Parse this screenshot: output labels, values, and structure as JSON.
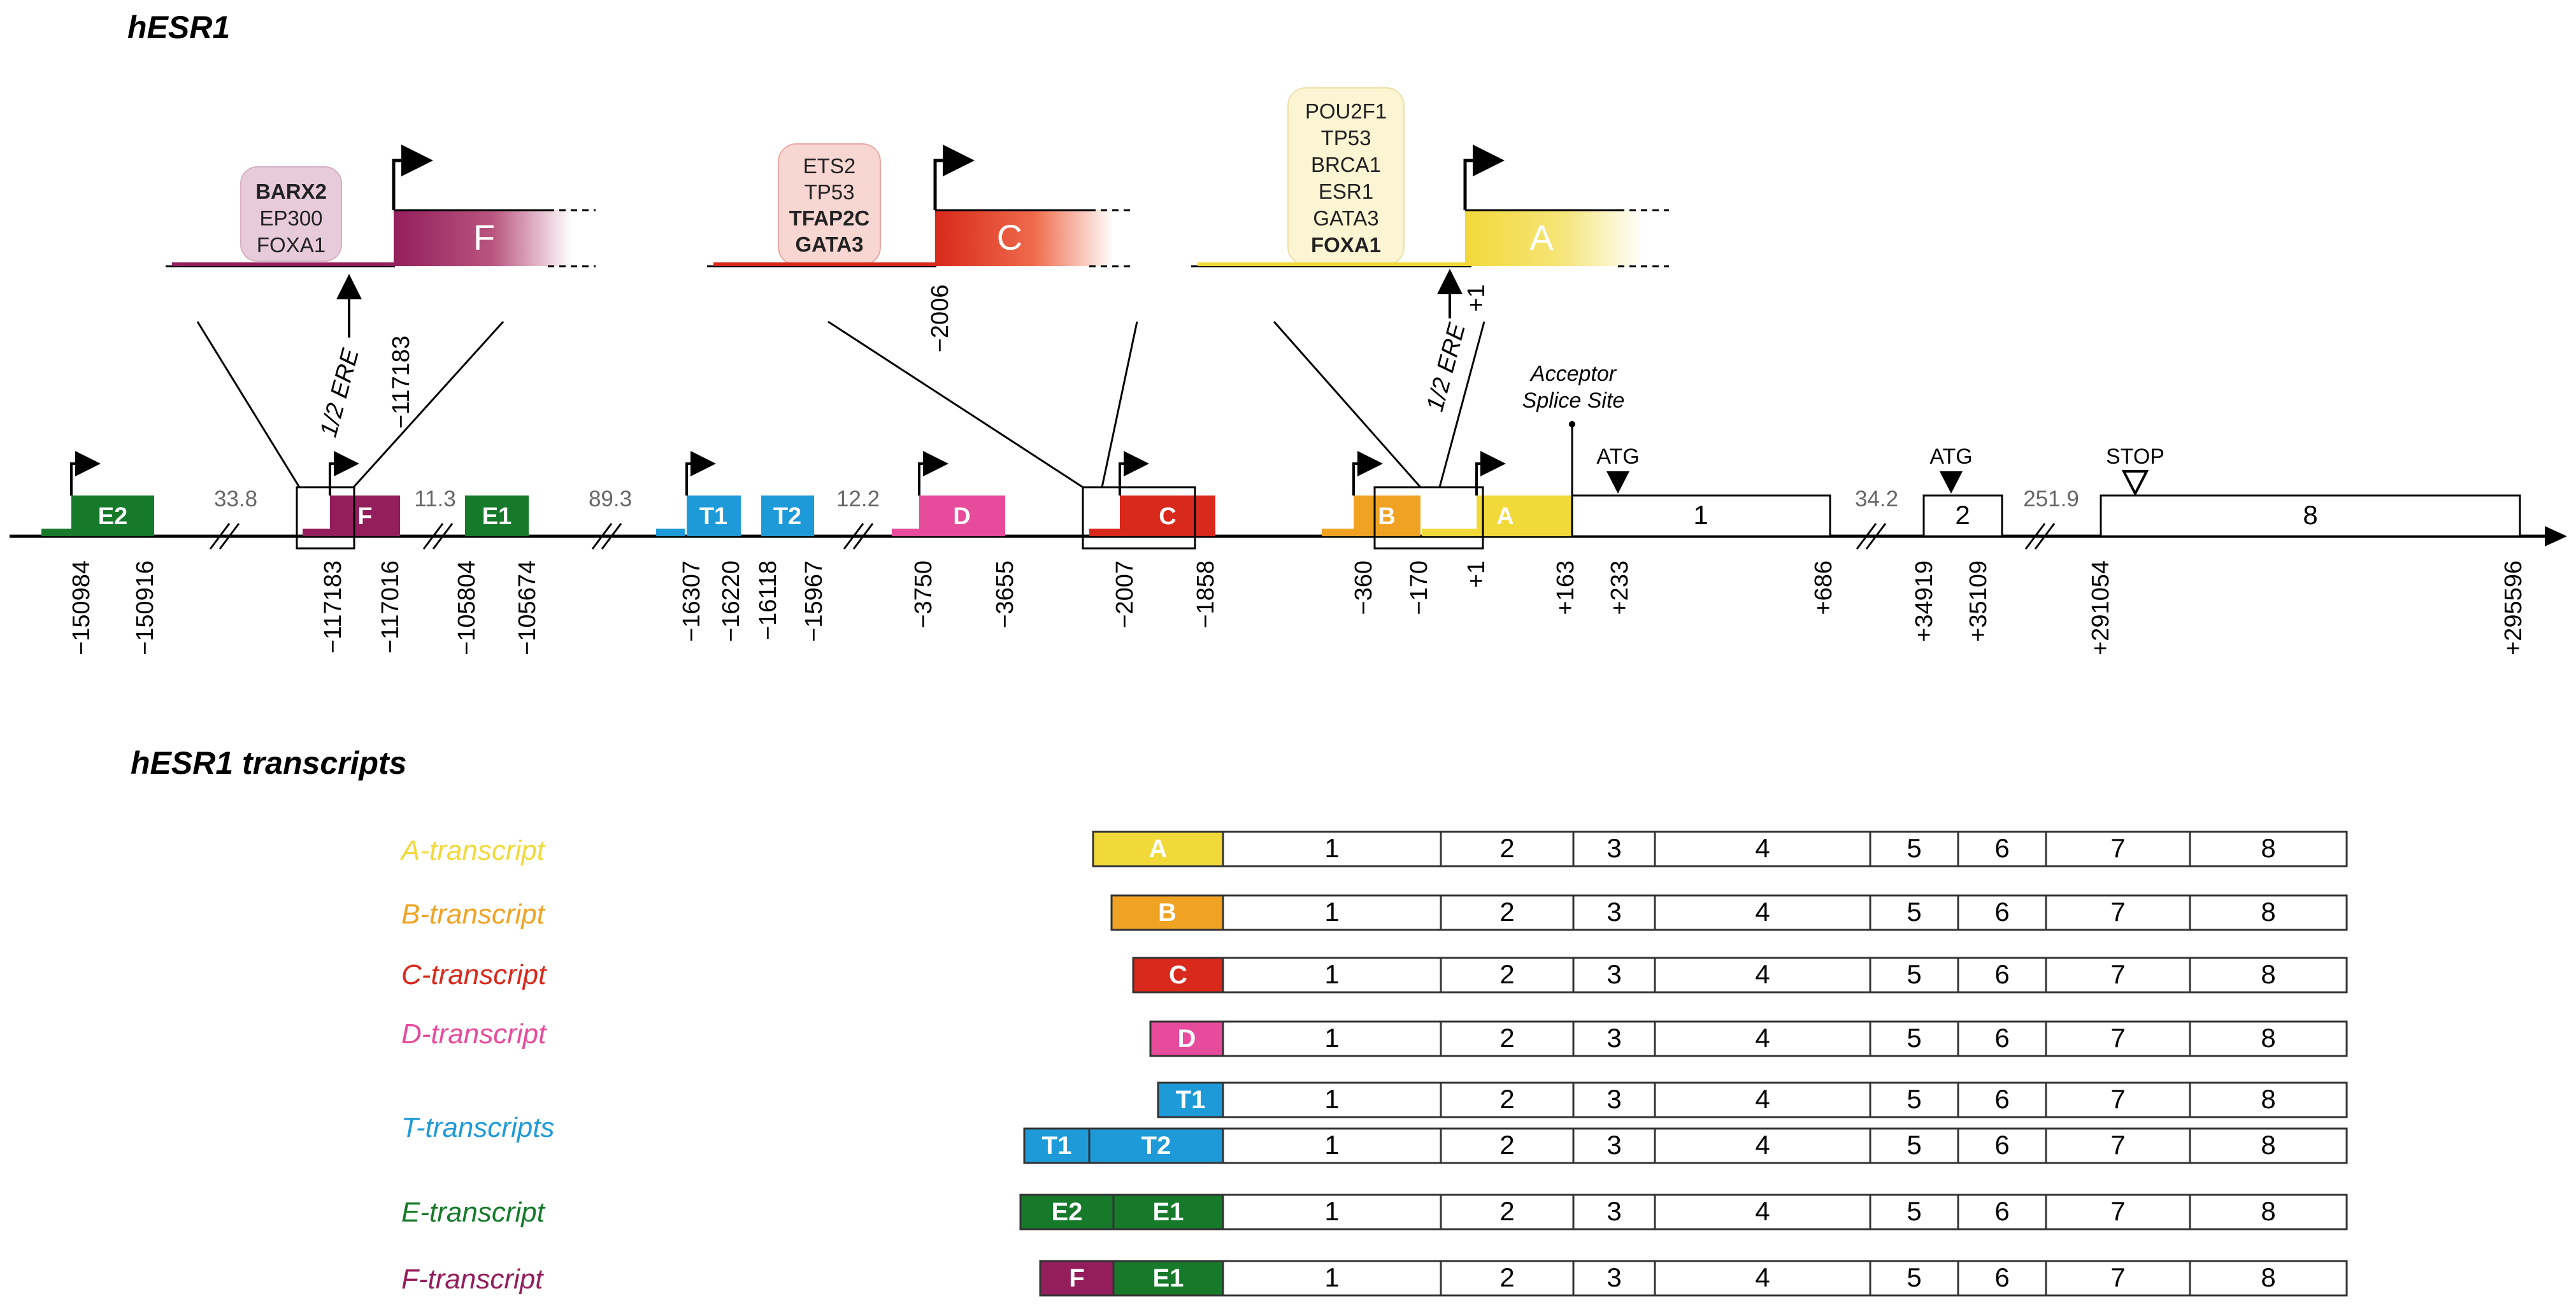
{
  "titles": {
    "gene": "hESR1",
    "transcripts": "hESR1 transcripts"
  },
  "colors": {
    "A": "#f2d93a",
    "B": "#f0a323",
    "C": "#d8291c",
    "D": "#e74b9c",
    "T": "#1e9ad9",
    "E": "#167a2a",
    "F": "#931e5b",
    "gene_axis": "#000000",
    "distance": "#666666"
  },
  "promoters": {
    "F": {
      "label": "F",
      "position": "−117183",
      "ere_label": "1/2 ERE",
      "tfs": [
        "BARX2",
        "EP300",
        "FOXA1"
      ],
      "bold_tfs": [
        "BARX2"
      ]
    },
    "C": {
      "label": "C",
      "position": "−2006",
      "tfs": [
        "ETS2",
        "TP53",
        "TFAP2C",
        "GATA3"
      ],
      "bold_tfs": [
        "TFAP2C",
        "GATA3"
      ]
    },
    "A": {
      "label": "A",
      "position": "+1",
      "ere_label": "1/2 ERE",
      "tfs": [
        "POU2F1",
        "TP53",
        "BRCA1",
        "ESR1",
        "GATA3",
        "FOXA1"
      ],
      "bold_tfs": [
        "FOXA1"
      ]
    }
  },
  "gene_map": {
    "exons": [
      {
        "label": "E2",
        "color_key": "E",
        "start": "−150984",
        "end": "−150916"
      },
      {
        "label": "F",
        "color_key": "F",
        "start": "−117183",
        "end": "−117016"
      },
      {
        "label": "E1",
        "color_key": "E",
        "start": "−105804",
        "end": "−105674"
      },
      {
        "label": "T1",
        "color_key": "T",
        "start": "−16307",
        "end": "−16220"
      },
      {
        "label": "T2",
        "color_key": "T",
        "start": "−16118",
        "end": "−15967"
      },
      {
        "label": "D",
        "color_key": "D",
        "start": "−3750",
        "end": "−3655"
      },
      {
        "label": "C",
        "color_key": "C",
        "start": "−2007",
        "end": "−1858"
      },
      {
        "label": "B",
        "color_key": "B",
        "start": "−360",
        "end": "−170"
      },
      {
        "label": "A",
        "color_key": "A",
        "start": "+1",
        "end": "+163"
      }
    ],
    "coding_exons": [
      {
        "label": "1",
        "start": "+233",
        "end": "+686"
      },
      {
        "label": "2",
        "start": "+34919",
        "end": "+35109"
      },
      {
        "label": "8",
        "start": "+291054",
        "end": "+295596"
      }
    ],
    "distances": [
      "33.8",
      "11.3",
      "89.3",
      "12.2",
      "34.2",
      "251.9"
    ],
    "annotations": {
      "acceptor": [
        "Acceptor",
        "Splice Site"
      ],
      "atg": "ATG",
      "stop": "STOP"
    }
  },
  "transcripts": [
    {
      "name": "A-transcript",
      "color_key": "A",
      "rows": [
        [
          "A"
        ]
      ]
    },
    {
      "name": "B-transcript",
      "color_key": "B",
      "rows": [
        [
          "B"
        ]
      ]
    },
    {
      "name": "C-transcript",
      "color_key": "C",
      "rows": [
        [
          "C"
        ]
      ]
    },
    {
      "name": "D-transcript",
      "color_key": "D",
      "rows": [
        [
          "D"
        ]
      ]
    },
    {
      "name": "T-transcripts",
      "color_key": "T",
      "rows": [
        [
          "T1"
        ],
        [
          "T1",
          "T2"
        ]
      ]
    },
    {
      "name": "E-transcript",
      "color_key": "E",
      "rows": [
        [
          "E2",
          "E1"
        ]
      ]
    },
    {
      "name": "F-transcript",
      "color_key": "F",
      "rows": [
        [
          "F",
          "E1"
        ]
      ]
    }
  ],
  "exon_numbers": [
    "1",
    "2",
    "3",
    "4",
    "5",
    "6",
    "7",
    "8"
  ]
}
